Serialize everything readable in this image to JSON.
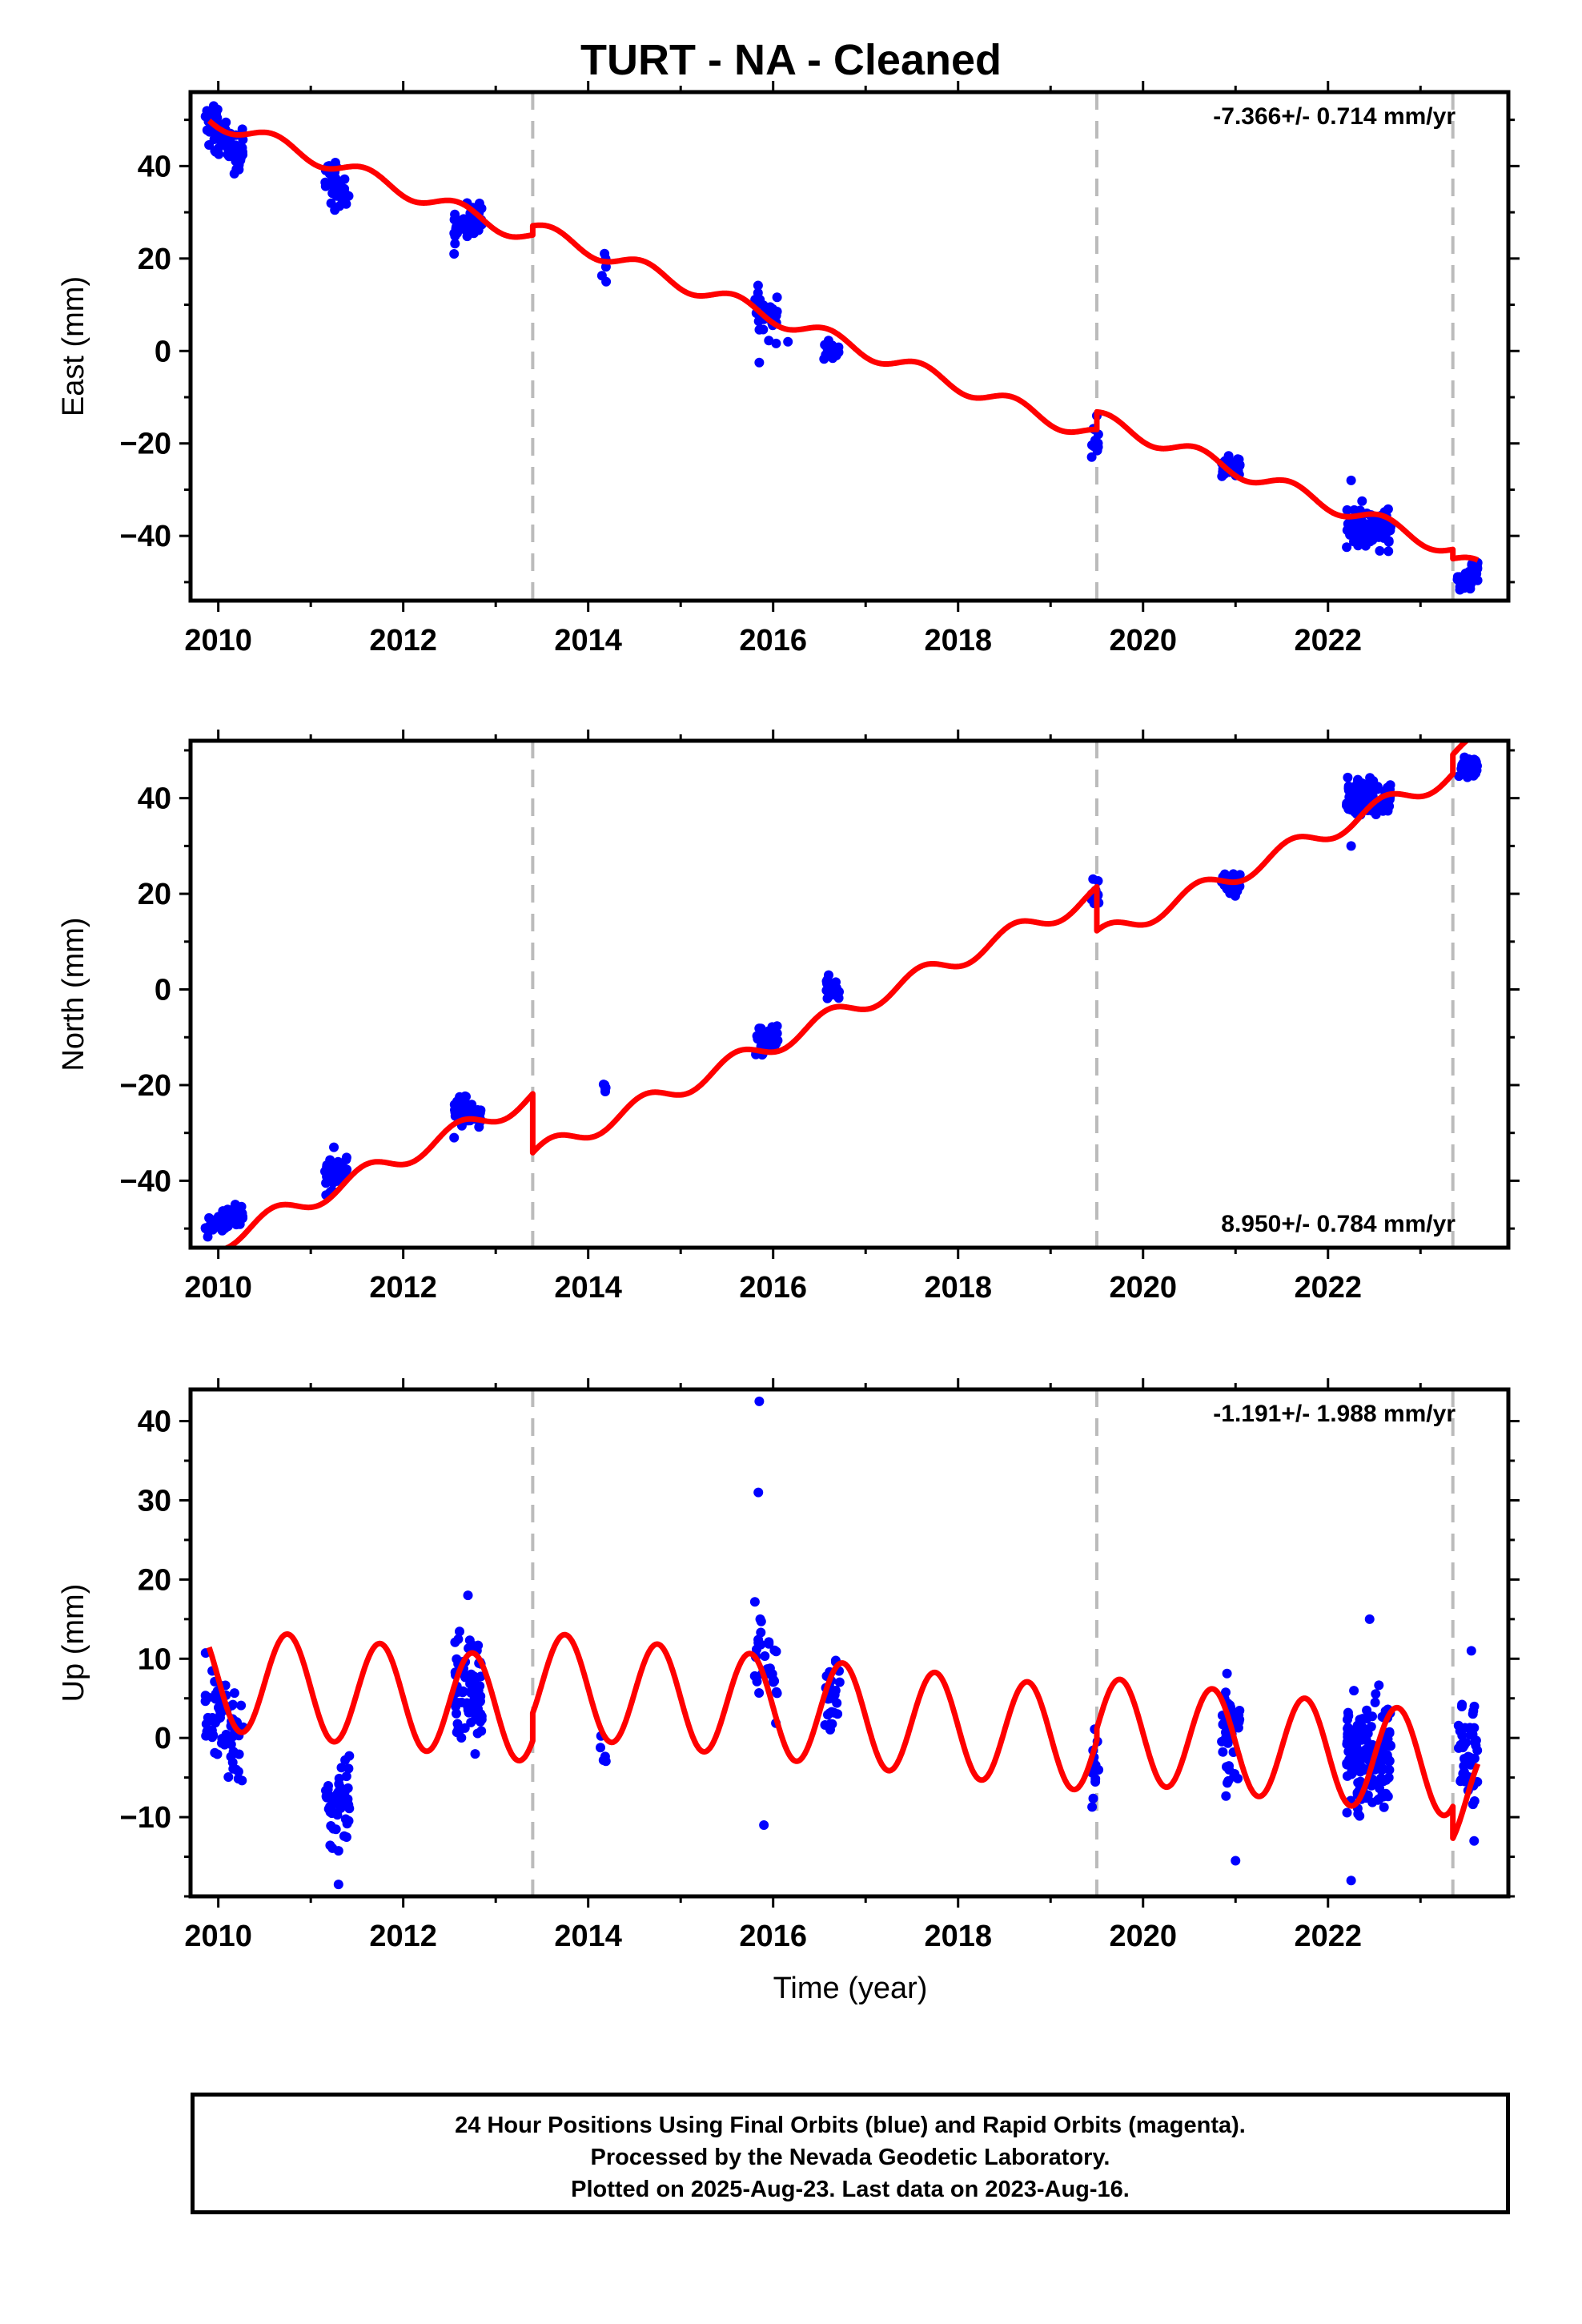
{
  "title": "TURT  - NA - Cleaned",
  "xlabel": "Time (year)",
  "footer": [
    "24 Hour Positions Using Final Orbits (blue) and Rapid Orbits (magenta).",
    "Processed by the Nevada Geodetic Laboratory.",
    "Plotted on 2025-Aug-23. Last data on 2023-Aug-16."
  ],
  "colors": {
    "data": "#0000ff",
    "model": "#ff0000",
    "steps": "#bbbbbb",
    "frame": "#000000"
  },
  "chart_data": [
    {
      "type": "scatter",
      "id": "east",
      "ylabel": "East (mm)",
      "rate": "-7.366+/- 0.714 mm/yr",
      "rate_position": "top-right",
      "xlim": [
        2009.7,
        2023.95
      ],
      "ylim": [
        -54,
        56
      ],
      "xticks": [
        2010,
        2012,
        2014,
        2016,
        2018,
        2020,
        2022
      ],
      "yticks": [
        -40,
        -20,
        0,
        20,
        40
      ],
      "step_epochs": [
        2013.4,
        2019.5,
        2023.35
      ],
      "model": {
        "rate_mm_per_yr": -7.366,
        "annual_amp_mm": 1.7,
        "annual_phase_yr": 0.35,
        "reference_epoch": 2016.3,
        "segments": [
          {
            "start": 2009.9,
            "end": 2013.4,
            "offset_mm": 3.2
          },
          {
            "start": 2013.4,
            "end": 2019.5,
            "offset_mm": 5.2
          },
          {
            "start": 2019.5,
            "end": 2023.35,
            "offset_mm": 9.0
          },
          {
            "start": 2023.35,
            "end": 2023.62,
            "offset_mm": 7.0
          }
        ]
      },
      "clusters": [
        {
          "start": 2009.86,
          "end": 2010.27,
          "center": 45.5,
          "slope": -16,
          "spread": 3.5,
          "count": 70
        },
        {
          "start": 2011.15,
          "end": 2011.42,
          "center": 36,
          "slope": -12,
          "spread": 3.0,
          "count": 40
        },
        {
          "start": 2012.55,
          "end": 2012.85,
          "center": 28,
          "slope": 8,
          "spread": 2.5,
          "count": 50
        },
        {
          "start": 2014.13,
          "end": 2014.2,
          "center": 19,
          "slope": 0,
          "spread": 2.5,
          "count": 5
        },
        {
          "start": 2015.8,
          "end": 2016.05,
          "center": 8,
          "slope": -12,
          "spread": 3.5,
          "count": 35
        },
        {
          "start": 2016.55,
          "end": 2016.72,
          "center": 0,
          "slope": 0,
          "spread": 1.5,
          "count": 25
        },
        {
          "start": 2019.44,
          "end": 2019.52,
          "center": -19,
          "slope": 0,
          "spread": 2.5,
          "count": 12
        },
        {
          "start": 2020.85,
          "end": 2021.05,
          "center": -25,
          "slope": 0,
          "spread": 2.0,
          "count": 35
        },
        {
          "start": 2022.2,
          "end": 2022.68,
          "center": -38,
          "slope": 0,
          "spread": 3.0,
          "count": 110
        },
        {
          "start": 2023.4,
          "end": 2023.62,
          "center": -49,
          "slope": 10,
          "spread": 1.8,
          "count": 40
        }
      ],
      "outliers": [
        [
          2009.95,
          53
        ],
        [
          2016.16,
          2
        ],
        [
          2015.85,
          -2.5
        ],
        [
          2019.5,
          -14
        ],
        [
          2022.25,
          -28
        ],
        [
          2012.55,
          21
        ],
        [
          2011.26,
          30.5
        ]
      ]
    },
    {
      "type": "scatter",
      "id": "north",
      "ylabel": "North (mm)",
      "rate": "8.950+/- 0.784 mm/yr",
      "rate_position": "bottom-right",
      "xlim": [
        2009.7,
        2023.95
      ],
      "ylim": [
        -54,
        52
      ],
      "xticks": [
        2010,
        2012,
        2014,
        2016,
        2018,
        2020,
        2022
      ],
      "yticks": [
        -40,
        -20,
        0,
        20,
        40
      ],
      "step_epochs": [
        2013.4,
        2019.5,
        2023.35
      ],
      "model": {
        "rate_mm_per_yr": 8.95,
        "annual_amp_mm": 2.0,
        "annual_phase_yr": 0.35,
        "reference_epoch": 2016.3,
        "segments": [
          {
            "start": 2009.9,
            "end": 2013.4,
            "offset_mm": 3.5
          },
          {
            "start": 2013.4,
            "end": 2019.5,
            "offset_mm": -8.8
          },
          {
            "start": 2019.5,
            "end": 2023.35,
            "offset_mm": -18.0
          },
          {
            "start": 2023.35,
            "end": 2023.62,
            "offset_mm": -14.0
          }
        ]
      },
      "clusters": [
        {
          "start": 2009.86,
          "end": 2010.27,
          "center": -48.5,
          "slope": 9,
          "spread": 1.5,
          "count": 70
        },
        {
          "start": 2011.15,
          "end": 2011.4,
          "center": -39,
          "slope": 14,
          "spread": 2.5,
          "count": 40
        },
        {
          "start": 2012.55,
          "end": 2012.85,
          "center": -26,
          "slope": -6,
          "spread": 2.0,
          "count": 50
        },
        {
          "start": 2014.13,
          "end": 2014.2,
          "center": -20,
          "slope": 0,
          "spread": 2.0,
          "count": 5
        },
        {
          "start": 2015.8,
          "end": 2016.05,
          "center": -10,
          "slope": 8,
          "spread": 2.5,
          "count": 35
        },
        {
          "start": 2016.55,
          "end": 2016.72,
          "center": 0,
          "slope": 0,
          "spread": 1.5,
          "count": 25
        },
        {
          "start": 2019.44,
          "end": 2019.52,
          "center": 20,
          "slope": 0,
          "spread": 2.0,
          "count": 12
        },
        {
          "start": 2020.85,
          "end": 2021.05,
          "center": 22,
          "slope": 0,
          "spread": 1.5,
          "count": 35
        },
        {
          "start": 2022.2,
          "end": 2022.68,
          "center": 40,
          "slope": 0,
          "spread": 2.5,
          "count": 110
        },
        {
          "start": 2023.4,
          "end": 2023.62,
          "center": 46.5,
          "slope": 0,
          "spread": 1.3,
          "count": 40
        }
      ],
      "outliers": [
        [
          2011.25,
          -33
        ],
        [
          2012.55,
          -31
        ],
        [
          2022.25,
          30
        ],
        [
          2016.6,
          3
        ]
      ]
    },
    {
      "type": "scatter",
      "id": "up",
      "ylabel": "Up (mm)",
      "rate": "-1.191+/- 1.988 mm/yr",
      "rate_position": "top-right",
      "xlim": [
        2009.7,
        2023.95
      ],
      "ylim": [
        -20,
        44
      ],
      "xticks": [
        2010,
        2012,
        2014,
        2016,
        2018,
        2020,
        2022
      ],
      "yticks": [
        -10,
        0,
        10,
        20,
        30,
        40
      ],
      "step_epochs": [
        2013.4,
        2019.5,
        2023.35
      ],
      "model": {
        "rate_mm_per_yr": -1.191,
        "annual_amp_mm": 6.5,
        "annual_phase_yr": 0.5,
        "reference_epoch": 2016.3,
        "segments": [
          {
            "start": 2009.9,
            "end": 2013.4,
            "offset_mm": 0.0
          },
          {
            "start": 2013.4,
            "end": 2019.5,
            "offset_mm": 3.5
          },
          {
            "start": 2019.5,
            "end": 2023.35,
            "offset_mm": 5.0
          },
          {
            "start": 2023.35,
            "end": 2023.62,
            "offset_mm": 1.0
          }
        ]
      },
      "clusters": [
        {
          "start": 2009.86,
          "end": 2010.27,
          "center": 2,
          "slope": -15,
          "spread": 4.5,
          "count": 70
        },
        {
          "start": 2011.15,
          "end": 2011.42,
          "center": -8,
          "slope": 8,
          "spread": 4.5,
          "count": 50
        },
        {
          "start": 2012.55,
          "end": 2012.85,
          "center": 6,
          "slope": 0,
          "spread": 5.5,
          "count": 80
        },
        {
          "start": 2014.13,
          "end": 2014.2,
          "center": -2,
          "slope": 0,
          "spread": 3.0,
          "count": 6
        },
        {
          "start": 2015.8,
          "end": 2016.05,
          "center": 9,
          "slope": -15,
          "spread": 4.0,
          "count": 30
        },
        {
          "start": 2016.55,
          "end": 2016.72,
          "center": 6,
          "slope": 0,
          "spread": 4.0,
          "count": 30
        },
        {
          "start": 2019.44,
          "end": 2019.52,
          "center": -4,
          "slope": 0,
          "spread": 3.5,
          "count": 15
        },
        {
          "start": 2020.85,
          "end": 2021.05,
          "center": 0,
          "slope": 0,
          "spread": 4.0,
          "count": 50
        },
        {
          "start": 2022.2,
          "end": 2022.68,
          "center": -2,
          "slope": 0,
          "spread": 4.5,
          "count": 170
        },
        {
          "start": 2023.4,
          "end": 2023.62,
          "center": -1,
          "slope": 0,
          "spread": 4.5,
          "count": 50
        }
      ],
      "outliers": [
        [
          2015.85,
          42.5
        ],
        [
          2015.84,
          31
        ],
        [
          2015.86,
          15
        ],
        [
          2015.9,
          -11
        ],
        [
          2012.7,
          18
        ],
        [
          2011.3,
          -18.5
        ],
        [
          2022.25,
          -18
        ],
        [
          2021.0,
          -15.5
        ],
        [
          2022.45,
          15
        ],
        [
          2023.55,
          11
        ],
        [
          2023.58,
          -13
        ]
      ]
    }
  ]
}
